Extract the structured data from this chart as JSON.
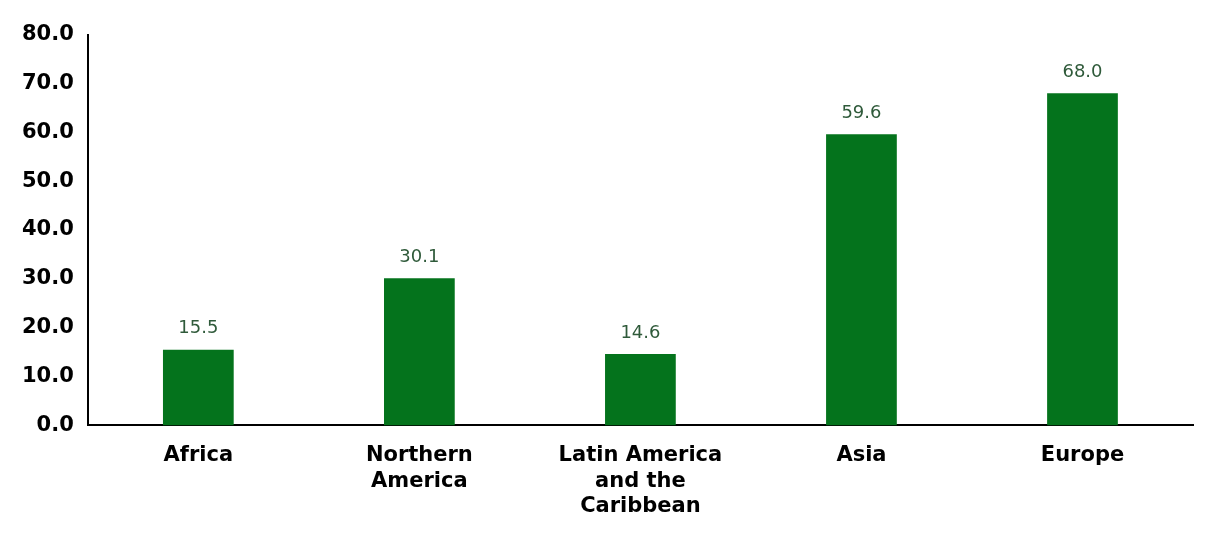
{
  "chart_data": {
    "type": "bar",
    "categories": [
      "Africa",
      "Northern America",
      "Latin America and the Caribbean",
      "Asia",
      "Europe"
    ],
    "values": [
      15.5,
      30.1,
      14.6,
      59.6,
      68.0
    ],
    "color": "#04731c",
    "ylim": [
      0,
      80
    ],
    "yticks": [
      {
        "value": 0,
        "label": "0.0"
      },
      {
        "value": 10,
        "label": "10.0"
      },
      {
        "value": 20,
        "label": "20.0"
      },
      {
        "value": 30,
        "label": "30.0"
      },
      {
        "value": 40,
        "label": "40.0"
      },
      {
        "value": 50,
        "label": "50.0"
      },
      {
        "value": 60,
        "label": "60.0"
      },
      {
        "value": 70,
        "label": "70.0"
      },
      {
        "value": 80,
        "label": "80.0"
      }
    ],
    "value_labels": [
      "15.5",
      "30.1",
      "14.6",
      "59.6",
      "68.0"
    ],
    "grid": false,
    "legend": false
  }
}
